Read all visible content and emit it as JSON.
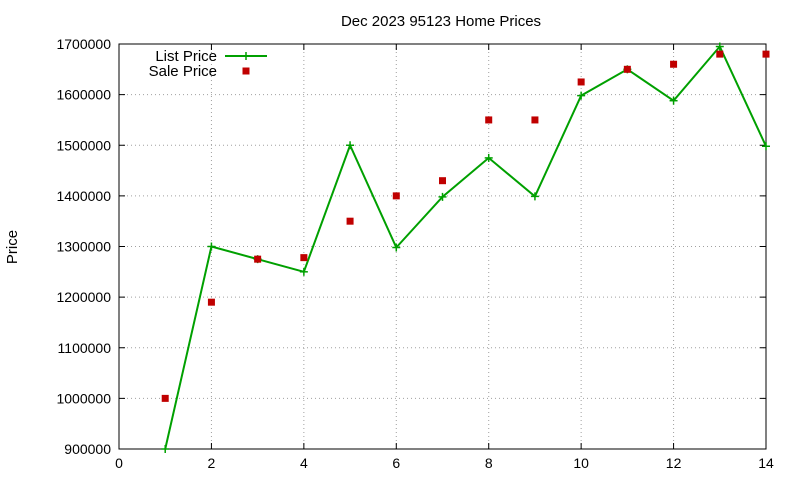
{
  "chart_data": {
    "type": "line",
    "title": "Dec 2023 95123 Home Prices",
    "xlabel": "",
    "ylabel": "Price",
    "xlim": [
      0,
      14
    ],
    "ylim": [
      900000,
      1700000
    ],
    "xticks": [
      0,
      2,
      4,
      6,
      8,
      10,
      12,
      14
    ],
    "yticks": [
      900000,
      1000000,
      1100000,
      1200000,
      1300000,
      1400000,
      1500000,
      1600000,
      1700000
    ],
    "grid": true,
    "legend": "top-left",
    "series": [
      {
        "name": "List Price",
        "style": "linespoints",
        "marker": "plus",
        "color": "#00a000",
        "x": [
          1,
          2,
          3,
          4,
          5,
          6,
          7,
          8,
          9,
          10,
          11,
          12,
          13,
          14
        ],
        "y": [
          900000,
          1300000,
          1275000,
          1250000,
          1500000,
          1298000,
          1398000,
          1475000,
          1399000,
          1598000,
          1650000,
          1588000,
          1695000,
          1498000
        ]
      },
      {
        "name": "Sale Price",
        "style": "points",
        "marker": "square",
        "color": "#c00000",
        "x": [
          1,
          2,
          3,
          4,
          5,
          6,
          7,
          8,
          9,
          10,
          11,
          12,
          13,
          14
        ],
        "y": [
          1000000,
          1190000,
          1275000,
          1278000,
          1350000,
          1400000,
          1430000,
          1550000,
          1550000,
          1625000,
          1650000,
          1660000,
          1680000,
          1680000
        ]
      }
    ]
  }
}
